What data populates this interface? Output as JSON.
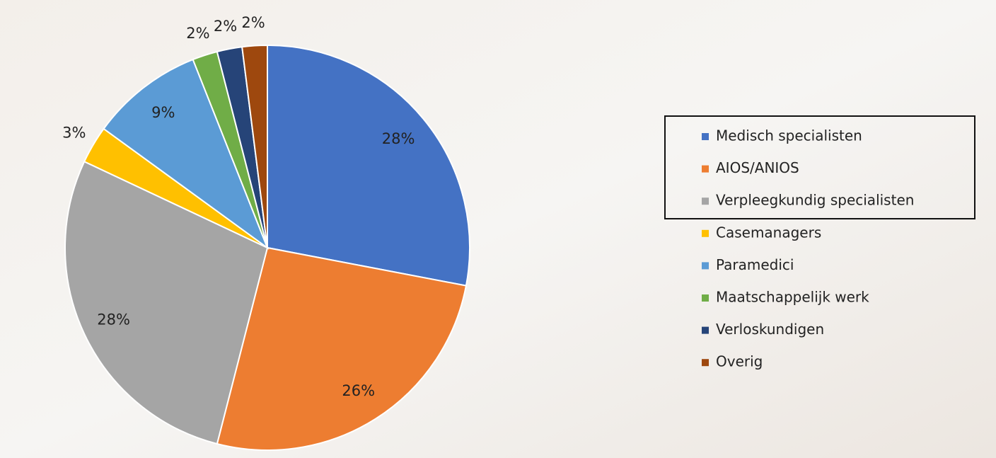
{
  "chart_data": {
    "type": "pie",
    "categories": [
      "Medisch specialisten",
      "AIOS/ANIOS",
      "Verpleegkundig specialisten",
      "Casemanagers",
      "Paramedici",
      "Maatschappelijk werk",
      "Verloskundigen",
      "Overig"
    ],
    "values": [
      28,
      26,
      28,
      3,
      9,
      2,
      2,
      2
    ],
    "value_labels": [
      "28%",
      "26%",
      "28%",
      "3%",
      "9%",
      "2%",
      "2%",
      "2%"
    ],
    "colors": [
      "#4472c4",
      "#ed7d31",
      "#a5a5a5",
      "#ffc000",
      "#5b9bd5",
      "#70ad47",
      "#264478",
      "#9e480e"
    ],
    "legend": "right"
  }
}
